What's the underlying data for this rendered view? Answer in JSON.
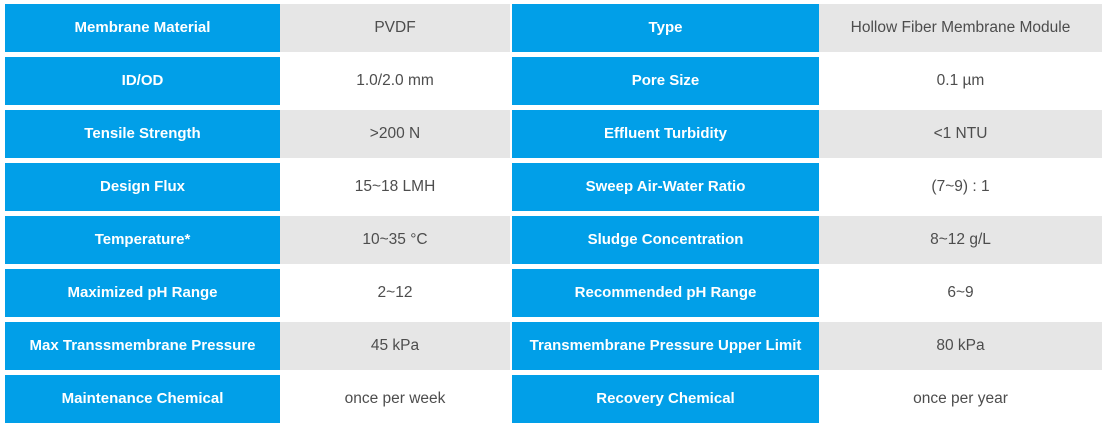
{
  "colors": {
    "label_bg": "#019FE8",
    "label_text": "#FFFFFF",
    "value_bg_odd": "#E6E6E6",
    "value_bg_even": "#FFFFFF",
    "value_text": "#4D4D4D"
  },
  "table": {
    "rows": [
      {
        "left_label": "Membrane Material",
        "left_value": "PVDF",
        "right_label": "Type",
        "right_value": "Hollow Fiber Membrane Module"
      },
      {
        "left_label": "ID/OD",
        "left_value": "1.0/2.0 mm",
        "right_label": "Pore Size",
        "right_value": "0.1 µm"
      },
      {
        "left_label": "Tensile Strength",
        "left_value": ">200 N",
        "right_label": "Effluent Turbidity",
        "right_value": "<1 NTU"
      },
      {
        "left_label": "Design Flux",
        "left_value": "15~18 LMH",
        "right_label": "Sweep Air-Water Ratio",
        "right_value": "(7~9) : 1"
      },
      {
        "left_label": "Temperature*",
        "left_value": "10~35 °C",
        "right_label": "Sludge Concentration",
        "right_value": "8~12 g/L"
      },
      {
        "left_label": "Maximized pH Range",
        "left_value": "2~12",
        "right_label": "Recommended pH Range",
        "right_value": "6~9"
      },
      {
        "left_label": "Max Transsmembrane Pressure",
        "left_value": "45 kPa",
        "right_label": "Transmembrane Pressure Upper Limit",
        "right_value": "80 kPa"
      },
      {
        "left_label": "Maintenance Chemical",
        "left_value": "once per week",
        "right_label": "Recovery Chemical",
        "right_value": "once per year"
      }
    ]
  }
}
